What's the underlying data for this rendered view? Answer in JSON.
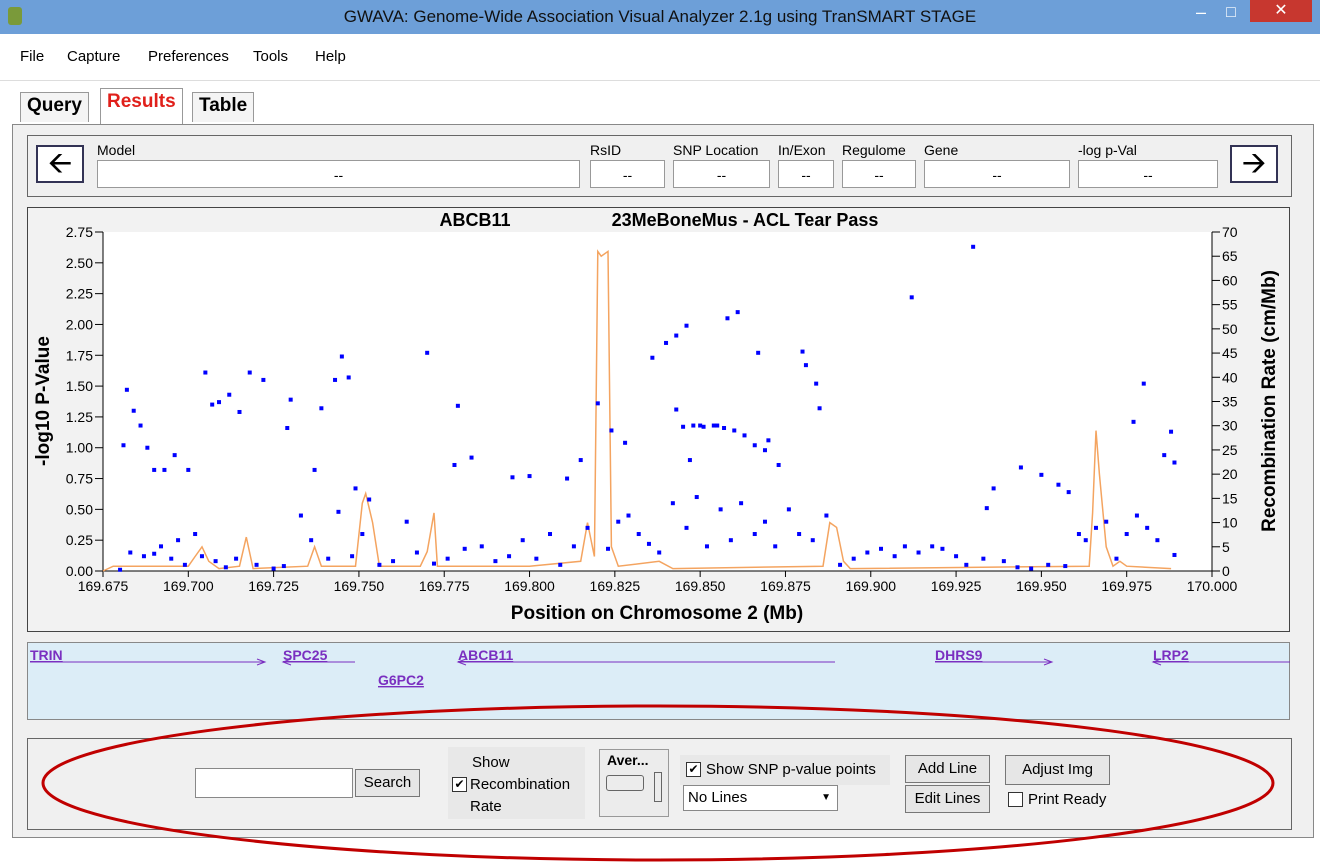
{
  "window": {
    "title": "GWAVA: Genome-Wide Association Visual Analyzer 2.1g using TranSMART STAGE"
  },
  "menu": [
    "File",
    "Capture",
    "Preferences",
    "Tools",
    "Help"
  ],
  "tabs": [
    "Query",
    "Results",
    "Table"
  ],
  "info": {
    "fields": [
      {
        "label": "Model",
        "value": "--"
      },
      {
        "label": "RsID",
        "value": "--"
      },
      {
        "label": "SNP Location",
        "value": "--"
      },
      {
        "label": "In/Exon",
        "value": "--"
      },
      {
        "label": "Regulome",
        "value": "--"
      },
      {
        "label": "Gene",
        "value": "--"
      },
      {
        "label": "-log p-Val",
        "value": "--"
      }
    ]
  },
  "chart_data": {
    "type": "scatter",
    "title": "ABCB11",
    "subtitle": "23MeBoneMus - ACL Tear Pass",
    "x_label": "Position on Chromosome 2 (Mb)",
    "y_label": "-log10  P-Value",
    "y2_label": "Recombination Rate (cm/Mb)",
    "xlim": [
      169.675,
      170
    ],
    "xticks": [
      169.675,
      {
        "value": 169.7,
        "label": "169.700"
      },
      169.725,
      {
        "value": 169.75,
        "label": "169.750"
      },
      169.775,
      {
        "value": 169.8,
        "label": "169.800"
      },
      169.825,
      {
        "value": 169.85,
        "label": "169.850"
      },
      169.875,
      {
        "value": 169.9,
        "label": "169.900"
      },
      169.925,
      {
        "value": 169.95,
        "label": "169.950"
      },
      169.975,
      {
        "value": 170,
        "label": "170.000"
      }
    ],
    "ylim": [
      0,
      2.75
    ],
    "yticks": [
      {
        "value": 0,
        "label": "0.00"
      },
      0.25,
      {
        "value": 0.5,
        "label": "0.50"
      },
      0.75,
      {
        "value": 1,
        "label": "1.00"
      },
      1.25,
      {
        "value": 1.5,
        "label": "1.50"
      },
      {
        "value": 1.75,
        "label": "1.75"
      },
      {
        "value": 2,
        "label": "2.00"
      },
      2.25,
      {
        "value": 2.5,
        "label": "2.50"
      },
      2.75
    ],
    "y2lim": [
      0,
      70
    ],
    "y2ticks": [
      0,
      5,
      10,
      15,
      20,
      25,
      30,
      35,
      40,
      45,
      50,
      55,
      60,
      65,
      70
    ],
    "series": [
      {
        "type": "scatter",
        "color": "#0000ff",
        "x": [
          169.682,
          169.681,
          169.684,
          169.686,
          169.688,
          169.69,
          169.693,
          169.696,
          169.7,
          169.705,
          169.707,
          169.709,
          169.712,
          169.715,
          169.718,
          169.722,
          169.729,
          169.73,
          169.737,
          169.739,
          169.743,
          169.745,
          169.747,
          169.749,
          169.753,
          169.77,
          169.779,
          169.778,
          169.783,
          169.795,
          169.8,
          169.811,
          169.815,
          169.82,
          169.824,
          169.828,
          169.836,
          169.84,
          169.843,
          169.843,
          169.846,
          169.847,
          169.85,
          169.855,
          169.858,
          169.861,
          169.867,
          169.87,
          169.873,
          169.88,
          169.881,
          169.884,
          169.885,
          169.912,
          169.93,
          169.934,
          169.936,
          169.944,
          169.95,
          169.955,
          169.958,
          169.977,
          169.98,
          169.988,
          169.986,
          169.989,
          169.989,
          169.68,
          169.683,
          169.687,
          169.69,
          169.692,
          169.695,
          169.697,
          169.699,
          169.702,
          169.704,
          169.708,
          169.711,
          169.714,
          169.72,
          169.725,
          169.728,
          169.733,
          169.736,
          169.741,
          169.744,
          169.748,
          169.751,
          169.756,
          169.76,
          169.764,
          169.767,
          169.772,
          169.776,
          169.781,
          169.786,
          169.79,
          169.794,
          169.798,
          169.802,
          169.806,
          169.809,
          169.813,
          169.817,
          169.823,
          169.826,
          169.829,
          169.832,
          169.835,
          169.838,
          169.842,
          169.846,
          169.849,
          169.852,
          169.856,
          169.859,
          169.862,
          169.866,
          169.869,
          169.872,
          169.876,
          169.879,
          169.883,
          169.887,
          169.891,
          169.895,
          169.899,
          169.903,
          169.907,
          169.91,
          169.914,
          169.918,
          169.921,
          169.925,
          169.928,
          169.933,
          169.939,
          169.943,
          169.947,
          169.952,
          169.957,
          169.961,
          169.963,
          169.966,
          169.969,
          169.972,
          169.975,
          169.978,
          169.981,
          169.984,
          169.845,
          169.848,
          169.851,
          169.854,
          169.857,
          169.86,
          169.863,
          169.866,
          169.869
        ],
        "values": [
          1.47,
          1.02,
          1.3,
          1.18,
          1,
          0.82,
          0.82,
          0.94,
          0.82,
          1.61,
          1.35,
          1.37,
          1.43,
          1.29,
          1.61,
          1.55,
          1.16,
          1.39,
          0.82,
          1.32,
          1.55,
          1.74,
          1.57,
          0.67,
          0.58,
          1.77,
          1.34,
          0.86,
          0.92,
          0.76,
          0.77,
          0.75,
          0.9,
          1.36,
          1.14,
          1.04,
          1.73,
          1.85,
          1.31,
          1.91,
          1.99,
          0.9,
          1.18,
          1.18,
          2.05,
          2.1,
          1.77,
          1.06,
          0.86,
          1.78,
          1.67,
          1.52,
          1.32,
          2.22,
          2.63,
          0.51,
          0.67,
          0.84,
          0.78,
          0.7,
          0.64,
          1.21,
          1.52,
          1.13,
          0.94,
          0.88,
          0.13,
          0.01,
          0.15,
          0.12,
          0.14,
          0.2,
          0.1,
          0.25,
          0.05,
          0.3,
          0.12,
          0.08,
          0.03,
          0.1,
          0.05,
          0.02,
          0.04,
          0.45,
          0.25,
          0.1,
          0.48,
          0.12,
          0.3,
          0.05,
          0.08,
          0.4,
          0.15,
          0.06,
          0.1,
          0.18,
          0.2,
          0.08,
          0.12,
          0.25,
          0.1,
          0.3,
          0.05,
          0.2,
          0.35,
          0.18,
          0.4,
          0.45,
          0.3,
          0.22,
          0.15,
          0.55,
          0.35,
          0.6,
          0.2,
          0.5,
          0.25,
          0.55,
          0.3,
          0.4,
          0.2,
          0.5,
          0.3,
          0.25,
          0.45,
          0.05,
          0.1,
          0.15,
          0.18,
          0.12,
          0.2,
          0.15,
          0.2,
          0.18,
          0.12,
          0.05,
          0.1,
          0.08,
          0.03,
          0.02,
          0.05,
          0.04,
          0.3,
          0.25,
          0.35,
          0.4,
          0.1,
          0.3,
          0.45,
          0.35,
          0.25,
          1.17,
          1.18,
          1.17,
          1.18,
          1.16,
          1.14,
          1.1,
          1.02,
          0.98
        ]
      },
      {
        "type": "line",
        "axis": "y2",
        "color": "#f4a460",
        "x": [
          169.675,
          169.678,
          169.7,
          169.702,
          169.704,
          169.706,
          169.709,
          169.715,
          169.717,
          169.719,
          169.735,
          169.737,
          169.739,
          169.749,
          169.751,
          169.752,
          169.754,
          169.756,
          169.768,
          169.77,
          169.772,
          169.773,
          169.8,
          169.815,
          169.817,
          169.819,
          169.82,
          169.821,
          169.823,
          169.824,
          169.826,
          169.838,
          169.842,
          169.886,
          169.888,
          169.89,
          169.892,
          169.894,
          169.964,
          169.965,
          169.966,
          169.967,
          169.969,
          169.971,
          169.973,
          169.975,
          169.988
        ],
        "values": [
          0,
          1,
          1,
          3,
          5,
          2,
          0.5,
          1,
          7,
          0.5,
          1,
          5,
          1,
          1,
          14,
          16,
          10,
          1,
          1,
          4,
          12,
          1,
          1,
          2,
          10,
          3,
          66,
          65,
          66,
          5,
          1,
          2,
          0.5,
          1,
          10,
          9,
          2,
          0.5,
          1,
          12,
          29,
          20,
          5,
          1,
          2,
          1,
          0.5
        ]
      }
    ]
  },
  "genes": [
    "TRIN",
    "SPC25",
    "G6PC2",
    "ABCB11",
    "DHRS9",
    "LRP2"
  ],
  "controls": {
    "search_button": "Search",
    "show_recombination": {
      "label": "Show Recombination Rate",
      "checked": true
    },
    "average": "Aver...",
    "show_snp": {
      "label": "Show SNP p-value points",
      "checked": true
    },
    "lines_select": "No Lines",
    "add_line": "Add Line",
    "edit_lines": "Edit Lines",
    "adjust_img": "Adjust Img",
    "print_ready": {
      "label": "Print Ready",
      "checked": false
    }
  }
}
